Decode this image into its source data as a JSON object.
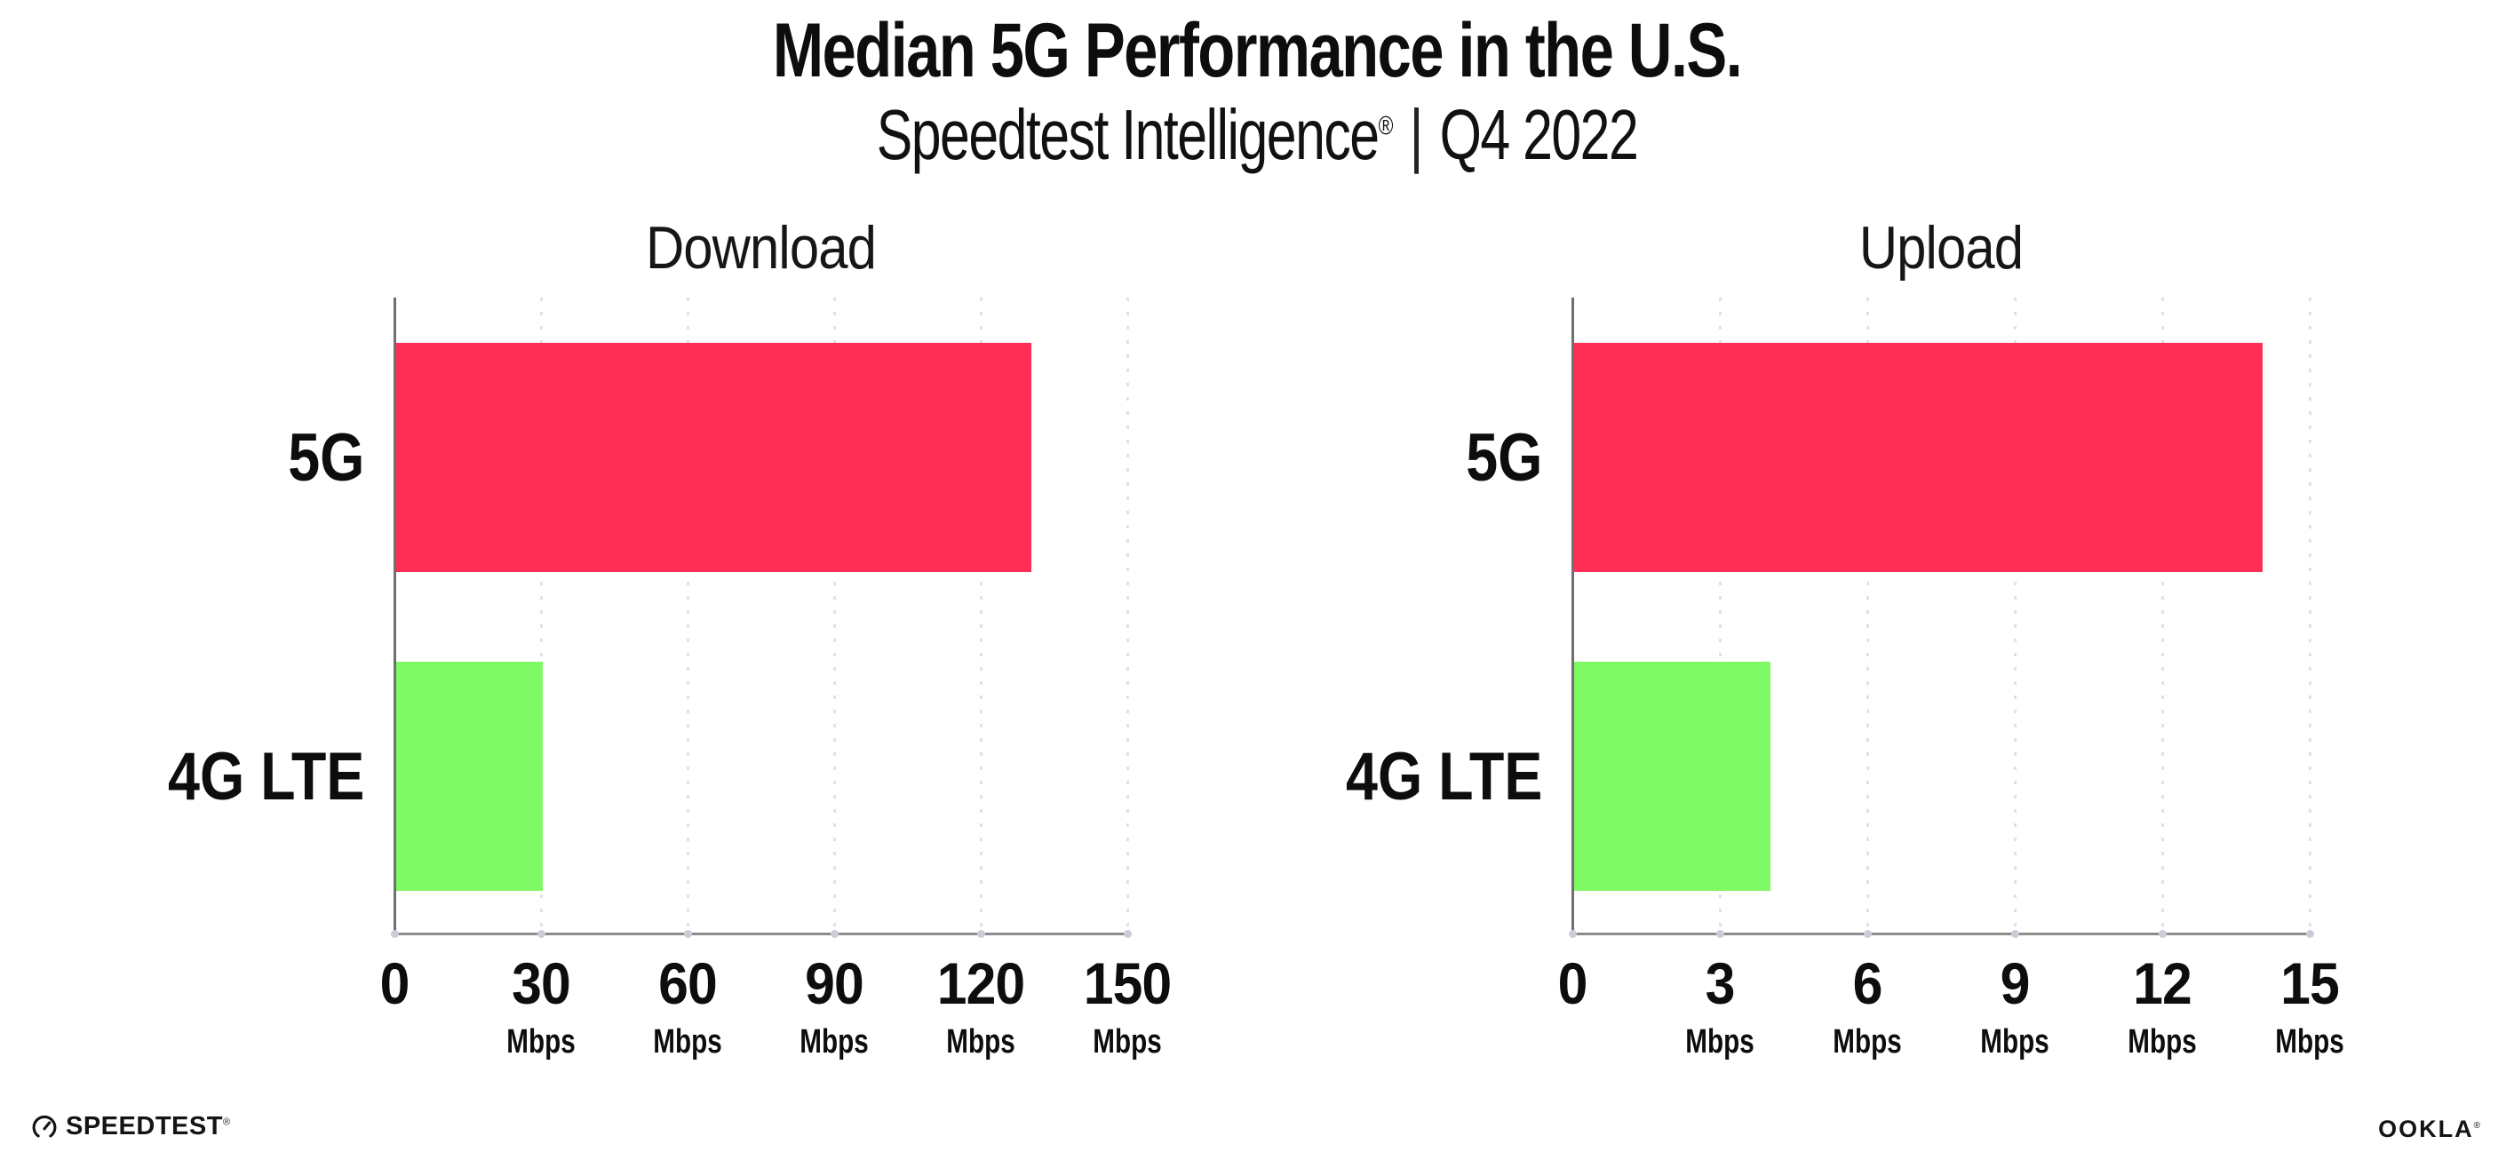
{
  "title": "Median 5G Performance in the U.S.",
  "subtitle": {
    "product": "Speedtest Intelligence",
    "registered": "®",
    "separator": "|",
    "period": "Q4 2022"
  },
  "colors": {
    "bar_5g": "#FF2E55",
    "bar_4g_lte": "#7FFA64",
    "gridline": "#e0e0eb",
    "x_axis": "#8c8c8c",
    "y_axis": "#6f6f6f"
  },
  "chart_data": [
    {
      "type": "bar",
      "orientation": "horizontal",
      "title": "Download",
      "categories": [
        "5G",
        "4G LTE"
      ],
      "values": [
        130,
        30
      ],
      "unit": "Mbps",
      "xlim": [
        0,
        150
      ],
      "xticks": [
        0,
        30,
        60,
        90,
        120,
        150
      ],
      "bar_colors": [
        "#FF2E55",
        "#7FFA64"
      ],
      "grid": "vertical-dotted",
      "legend": false
    },
    {
      "type": "bar",
      "orientation": "horizontal",
      "title": "Upload",
      "categories": [
        "5G",
        "4G LTE"
      ],
      "values": [
        14,
        4
      ],
      "unit": "Mbps",
      "xlim": [
        0,
        15
      ],
      "xticks": [
        0,
        3,
        6,
        9,
        12,
        15
      ],
      "bar_colors": [
        "#FF2E55",
        "#7FFA64"
      ],
      "grid": "vertical-dotted",
      "legend": false
    }
  ],
  "footer": {
    "speedtest_label": "SPEEDTEST",
    "speedtest_mark": "®",
    "ookla_label": "OOKLA",
    "ookla_mark": "®"
  }
}
